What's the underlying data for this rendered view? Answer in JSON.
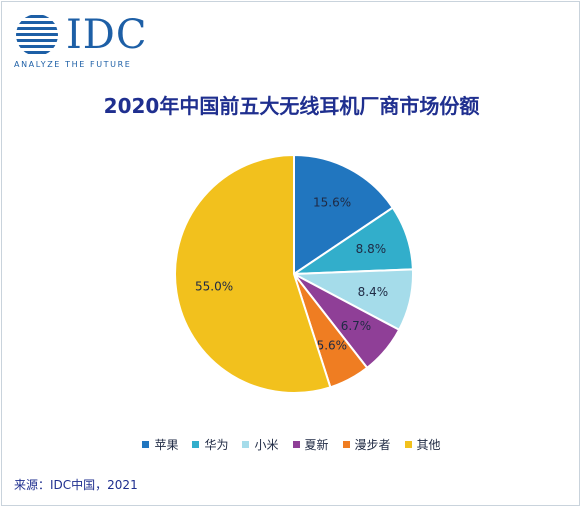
{
  "logo": {
    "text": "IDC",
    "tagline": "ANALYZE THE FUTURE"
  },
  "chart_data": {
    "type": "pie",
    "title": "2020年中国前五大无线耳机厂商市场份额",
    "start_angle_deg": 0,
    "direction": "clockwise",
    "legend_position": "bottom",
    "slices": [
      {
        "name": "苹果",
        "value": 15.6,
        "label": "15.6%",
        "color": "#2176bf"
      },
      {
        "name": "华为",
        "value": 8.8,
        "label": "8.8%",
        "color": "#32aecb"
      },
      {
        "name": "小米",
        "value": 8.4,
        "label": "8.4%",
        "color": "#a5dcea"
      },
      {
        "name": "夏新",
        "value": 6.7,
        "label": "6.7%",
        "color": "#8f3f97"
      },
      {
        "name": "漫步者",
        "value": 5.6,
        "label": "5.6%",
        "color": "#ef7d22"
      },
      {
        "name": "其他",
        "value": 55.0,
        "label": "55.0%",
        "color": "#f2c11d"
      }
    ]
  },
  "footer": {
    "source": "来源：IDC中国，2021"
  }
}
